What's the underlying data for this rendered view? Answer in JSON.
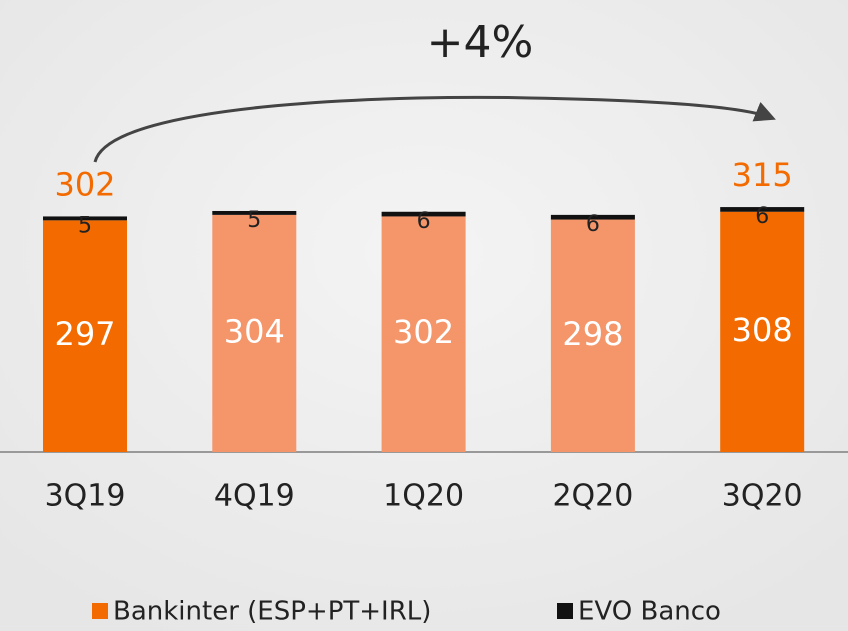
{
  "chart_data": {
    "type": "stacked_bar",
    "categories": [
      "3Q19",
      "4Q19",
      "1Q20",
      "2Q20",
      "3Q20"
    ],
    "series": [
      {
        "name": "Bankinter (ESP+PT+IRL)",
        "color": "#f26a00",
        "colors": [
          "#f26a00",
          "#f4956a",
          "#f4956a",
          "#f4956a",
          "#f26a00"
        ],
        "values": [
          297,
          304,
          302,
          298,
          308
        ]
      },
      {
        "name": "EVO Banco",
        "color": "#111111",
        "values": [
          5,
          5,
          6,
          6,
          6
        ]
      }
    ],
    "totals": [
      302,
      null,
      null,
      null,
      315
    ],
    "annotation": "+4%"
  }
}
